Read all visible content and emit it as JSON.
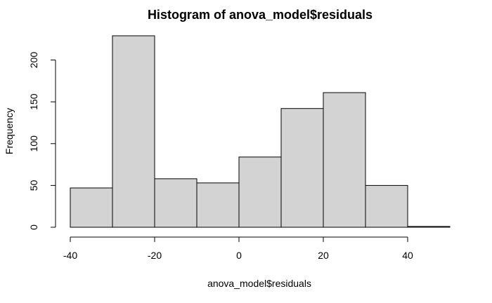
{
  "chart_data": {
    "type": "bar",
    "title": "Histogram of anova_model$residuals",
    "xlabel": "anova_model$residuals",
    "ylabel": "Frequency",
    "bins": [
      {
        "start": -40,
        "end": -30,
        "count": 47
      },
      {
        "start": -30,
        "end": -20,
        "count": 229
      },
      {
        "start": -20,
        "end": -10,
        "count": 58
      },
      {
        "start": -10,
        "end": 0,
        "count": 53
      },
      {
        "start": 0,
        "end": 10,
        "count": 84
      },
      {
        "start": 10,
        "end": 20,
        "count": 142
      },
      {
        "start": 20,
        "end": 30,
        "count": 161
      },
      {
        "start": 30,
        "end": 40,
        "count": 50
      },
      {
        "start": 40,
        "end": 50,
        "count": 1
      }
    ],
    "xlim": [
      -40,
      50
    ],
    "ylim": [
      0,
      229
    ],
    "x_ticks": [
      -40,
      -20,
      0,
      20,
      40
    ],
    "y_ticks": [
      0,
      50,
      100,
      150,
      200
    ],
    "grid": false,
    "colors": {
      "bar_fill": "#d3d3d3",
      "bar_stroke": "#000000"
    }
  }
}
